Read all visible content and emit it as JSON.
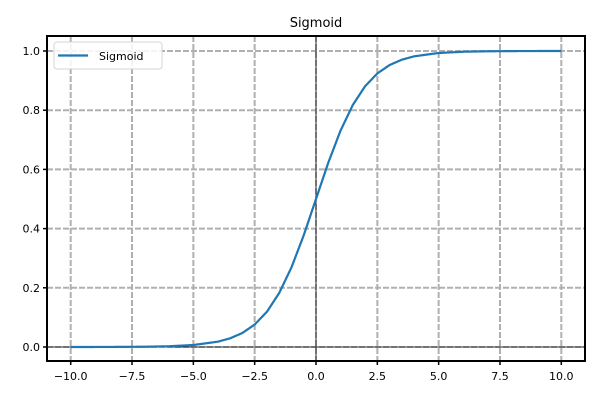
{
  "chart_data": {
    "type": "line",
    "title": "Sigmoid",
    "xlabel": "",
    "ylabel": "",
    "xlim": [
      -11,
      11
    ],
    "ylim": [
      -0.05,
      1.05
    ],
    "xticks": [
      -10.0,
      -7.5,
      -5.0,
      -2.5,
      0.0,
      2.5,
      5.0,
      7.5,
      10.0
    ],
    "xtick_labels": [
      "−10.0",
      "−7.5",
      "−5.0",
      "−2.5",
      "0.0",
      "2.5",
      "5.0",
      "7.5",
      "10.0"
    ],
    "yticks": [
      0.0,
      0.2,
      0.4,
      0.6,
      0.8,
      1.0
    ],
    "ytick_labels": [
      "0.0",
      "0.2",
      "0.4",
      "0.6",
      "0.8",
      "1.0"
    ],
    "grid": true,
    "legend_position": "upper left",
    "reference_lines": {
      "axhline": 0,
      "axvline": 0
    },
    "series": [
      {
        "name": "Sigmoid",
        "color": "#1f77b4",
        "x": [
          -10,
          -9,
          -8,
          -7,
          -6,
          -5,
          -4,
          -3.5,
          -3,
          -2.5,
          -2,
          -1.5,
          -1,
          -0.5,
          0,
          0.5,
          1,
          1.5,
          2,
          2.5,
          3,
          3.5,
          4,
          5,
          6,
          7,
          8,
          9,
          10
        ],
        "y": [
          5e-05,
          0.00012,
          0.00034,
          0.00091,
          0.00247,
          0.00669,
          0.01799,
          0.02931,
          0.04743,
          0.07586,
          0.1192,
          0.18243,
          0.26894,
          0.37754,
          0.5,
          0.62246,
          0.73106,
          0.81757,
          0.8808,
          0.92414,
          0.95257,
          0.97069,
          0.98201,
          0.99331,
          0.99753,
          0.99909,
          0.99966,
          0.99988,
          0.99995
        ]
      }
    ]
  },
  "colors": {
    "line": "#1f77b4",
    "grid": "#b0b0b0",
    "axes": "#000000",
    "background": "#ffffff"
  }
}
